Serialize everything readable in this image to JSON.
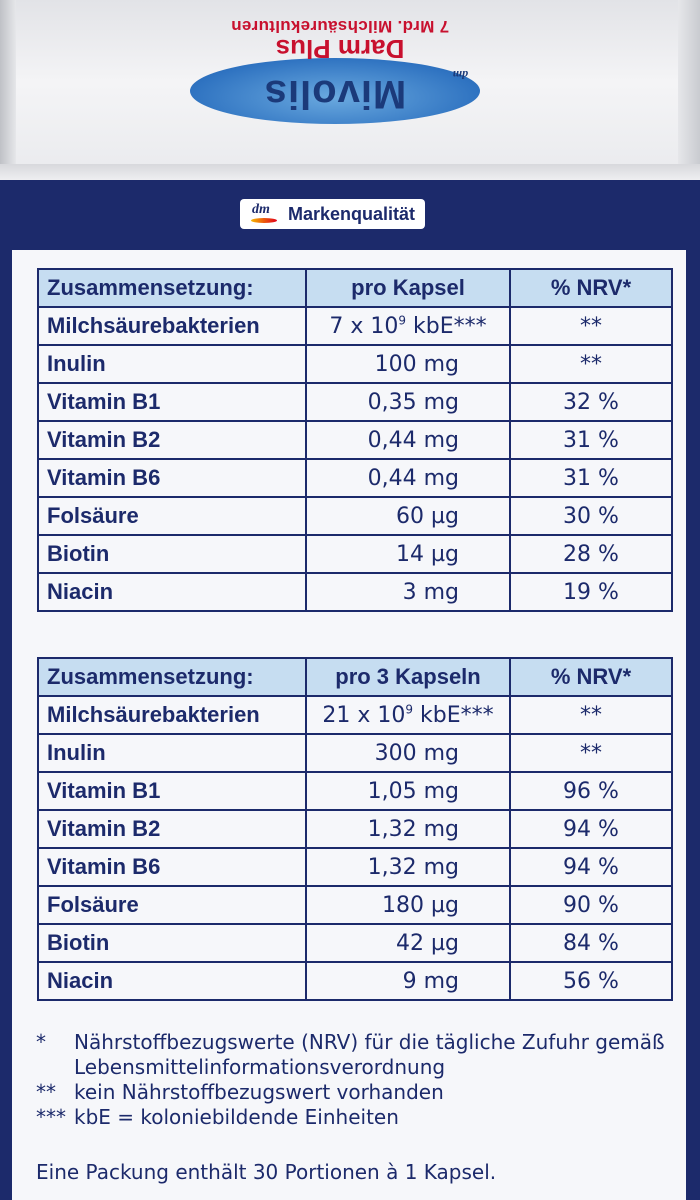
{
  "lid": {
    "brand": "Mivolis",
    "brand_small": "dm",
    "product": "Darm Plus",
    "tagline": "7 Mrd. Milchsäurekulturen"
  },
  "quality_badge": {
    "logo": "dm",
    "label": "Markenqualität"
  },
  "table1": {
    "headers": [
      "Zusammensetzung:",
      "pro Kapsel",
      "% NRV*"
    ],
    "rows": [
      {
        "name": "Milchsäurebakterien",
        "amount_pre": "7 x 10",
        "amount_exp": "9",
        "amount_post": " kbE***",
        "nrv": "**"
      },
      {
        "name": "Inulin",
        "amount": "100 mg",
        "nrv": "**"
      },
      {
        "name": "Vitamin B1",
        "amount": "0,35 mg",
        "nrv": "32 %"
      },
      {
        "name": "Vitamin B2",
        "amount": "0,44 mg",
        "nrv": "31 %"
      },
      {
        "name": "Vitamin B6",
        "amount": "0,44 mg",
        "nrv": "31 %"
      },
      {
        "name": "Folsäure",
        "amount": "60 µg",
        "nrv": "30 %"
      },
      {
        "name": "Biotin",
        "amount": "14 µg",
        "nrv": "28 %"
      },
      {
        "name": "Niacin",
        "amount": "3 mg",
        "nrv": "19 %"
      }
    ]
  },
  "table2": {
    "headers": [
      "Zusammensetzung:",
      "pro 3 Kapseln",
      "% NRV*"
    ],
    "rows": [
      {
        "name": "Milchsäurebakterien",
        "amount_pre": "21 x 10",
        "amount_exp": "9",
        "amount_post": " kbE***",
        "nrv": "**"
      },
      {
        "name": "Inulin",
        "amount": "300 mg",
        "nrv": "**"
      },
      {
        "name": "Vitamin B1",
        "amount": "1,05 mg",
        "nrv": "96 %"
      },
      {
        "name": "Vitamin B2",
        "amount": "1,32 mg",
        "nrv": "94 %"
      },
      {
        "name": "Vitamin B6",
        "amount": "1,32 mg",
        "nrv": "94 %"
      },
      {
        "name": "Folsäure",
        "amount": "180 µg",
        "nrv": "90 %"
      },
      {
        "name": "Biotin",
        "amount": "42 µg",
        "nrv": "84 %"
      },
      {
        "name": "Niacin",
        "amount": "9 mg",
        "nrv": "56 %"
      }
    ]
  },
  "footnotes": [
    {
      "marker": "*",
      "text": "Nährstoffbezugswerte (NRV) für die tägliche Zufuhr gemäß Lebensmittelinformationsverordnung"
    },
    {
      "marker": "**",
      "text": "kein Nährstoffbezugswert vorhanden"
    },
    {
      "marker": "***",
      "text": "kbE = koloniebildende Einheiten"
    }
  ],
  "pack_info": "Eine Packung enthält 30 Portionen à 1 Kapsel.",
  "colors": {
    "navy": "#1c2a6b",
    "header_blue": "#c6ddf1",
    "brand_red": "#c8102e",
    "brand_blue": "#2f73c1"
  }
}
